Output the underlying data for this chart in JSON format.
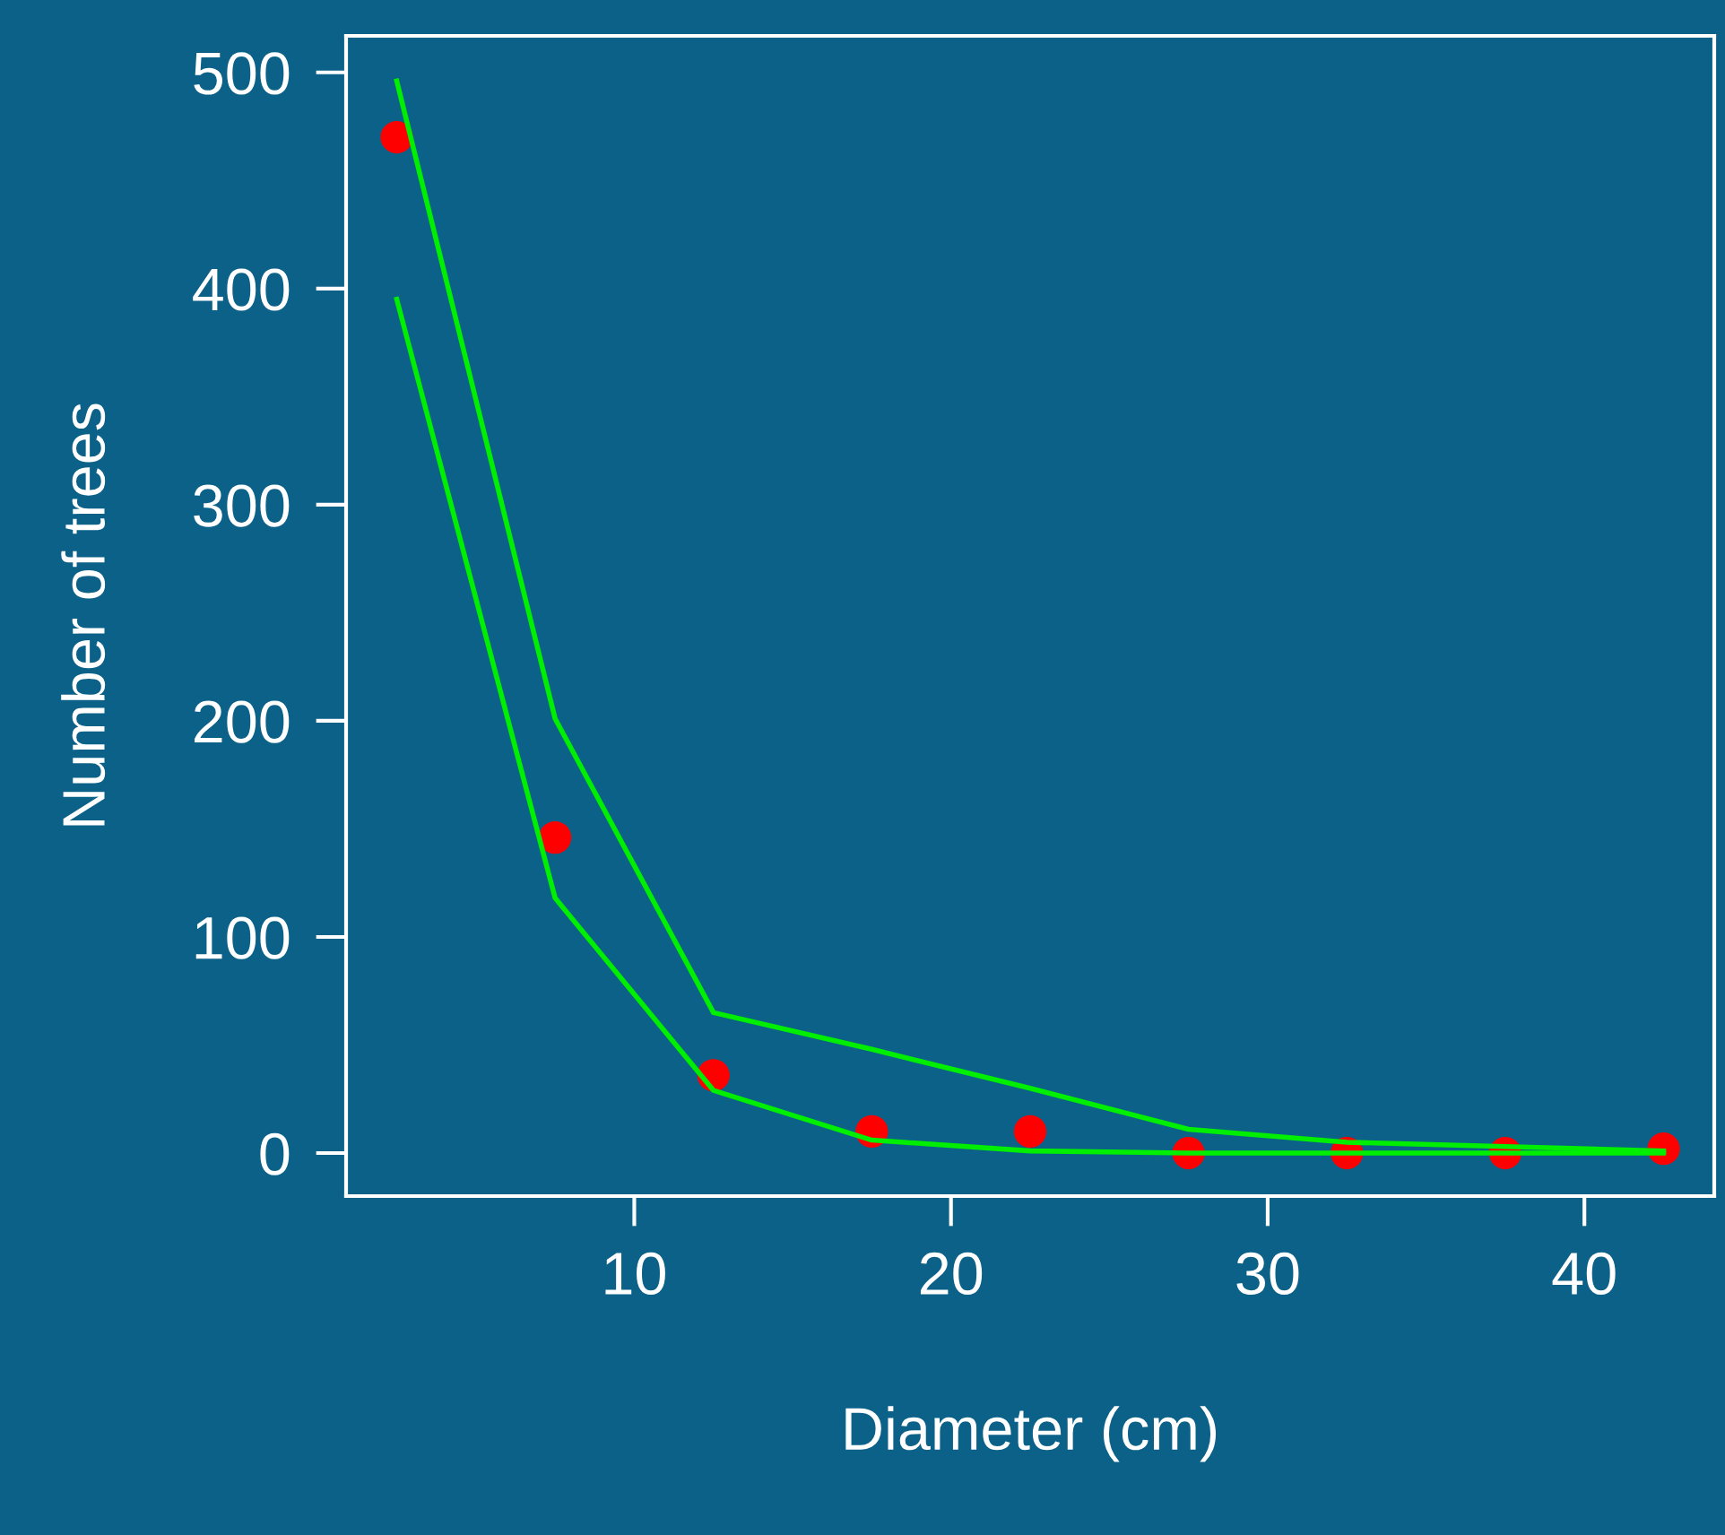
{
  "chart_data": {
    "type": "scatter",
    "xlabel": "Diameter (cm)",
    "ylabel": "Number of trees",
    "x": [
      2.5,
      7.5,
      12.5,
      17.5,
      22.5,
      27.5,
      32.5,
      37.5,
      42.5
    ],
    "xlim": [
      0.9,
      44.1
    ],
    "ylim": [
      -19.9,
      516.9
    ],
    "xticks": [
      10,
      20,
      30,
      40
    ],
    "yticks": [
      0,
      100,
      200,
      300,
      400,
      500
    ],
    "grid": false,
    "legend": false,
    "series": [
      {
        "marker": "circle",
        "color": "#ff0000",
        "values": [
          470,
          146,
          36,
          10,
          10,
          0,
          0,
          0,
          2
        ]
      },
      {
        "type": "line",
        "color": "#00ee00",
        "values": [
          496,
          201,
          65,
          48,
          30,
          11,
          5,
          3,
          1
        ]
      },
      {
        "type": "line",
        "color": "#00ee00",
        "values": [
          395,
          118,
          29,
          6,
          1,
          0,
          0,
          0,
          0
        ]
      }
    ]
  }
}
